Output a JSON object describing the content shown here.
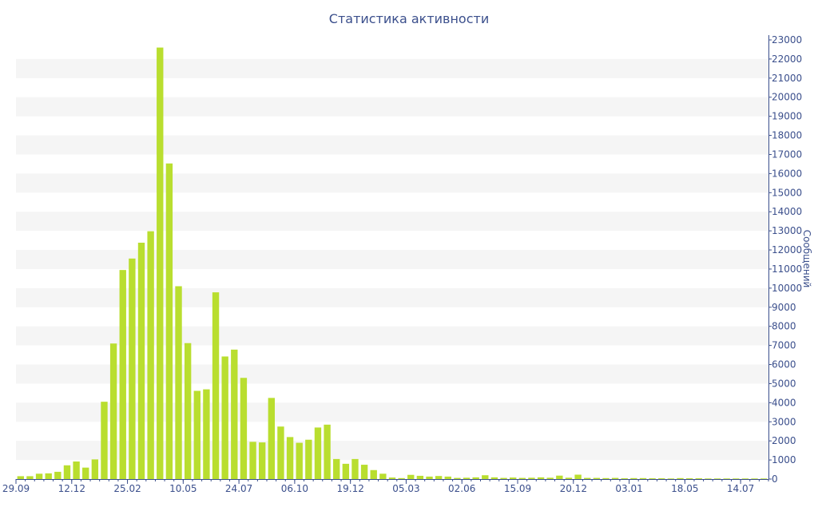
{
  "chart_data": {
    "type": "bar",
    "title": "Статистика активности",
    "xlabel": "",
    "ylabel": "Сообщений",
    "ylim": [
      0,
      23000
    ],
    "y_ticks": [
      0,
      1000,
      2000,
      3000,
      4000,
      5000,
      6000,
      7000,
      8000,
      9000,
      10000,
      11000,
      12000,
      13000,
      14000,
      15000,
      16000,
      17000,
      18000,
      19000,
      20000,
      21000,
      22000,
      23000
    ],
    "y_axis_position": "right",
    "x_tick_labels": [
      {
        "index": 0,
        "label": "29.09"
      },
      {
        "index": 6,
        "label": "12.12"
      },
      {
        "index": 12,
        "label": "25.02"
      },
      {
        "index": 18,
        "label": "10.05"
      },
      {
        "index": 24,
        "label": "24.07"
      },
      {
        "index": 30,
        "label": "06.10"
      },
      {
        "index": 36,
        "label": "19.12"
      },
      {
        "index": 42,
        "label": "05.03"
      },
      {
        "index": 48,
        "label": "02.06"
      },
      {
        "index": 54,
        "label": "15.09"
      },
      {
        "index": 60,
        "label": "20.12"
      },
      {
        "index": 66,
        "label": "03.01"
      },
      {
        "index": 72,
        "label": "18.05"
      },
      {
        "index": 78,
        "label": "14.07"
      }
    ],
    "grid": "horizontal-bands",
    "bar_color": "#b9de2f",
    "axis_color": "#3b4f8c",
    "band_color": "#f5f5f5",
    "values": [
      150,
      150,
      280,
      300,
      380,
      720,
      920,
      600,
      1030,
      4050,
      7100,
      10950,
      11550,
      12380,
      12980,
      22600,
      16530,
      10100,
      7120,
      4620,
      4700,
      9780,
      6420,
      6780,
      5300,
      1950,
      1920,
      4250,
      2750,
      2200,
      1900,
      2060,
      2700,
      2850,
      1050,
      800,
      1050,
      750,
      470,
      280,
      80,
      50,
      220,
      170,
      130,
      160,
      130,
      60,
      70,
      90,
      200,
      90,
      60,
      80,
      60,
      70,
      90,
      70,
      180,
      70,
      230,
      60,
      60,
      50,
      60,
      40,
      50,
      50,
      40,
      40,
      30,
      50,
      40,
      40,
      30,
      30,
      30,
      30,
      30,
      30,
      30
    ]
  }
}
